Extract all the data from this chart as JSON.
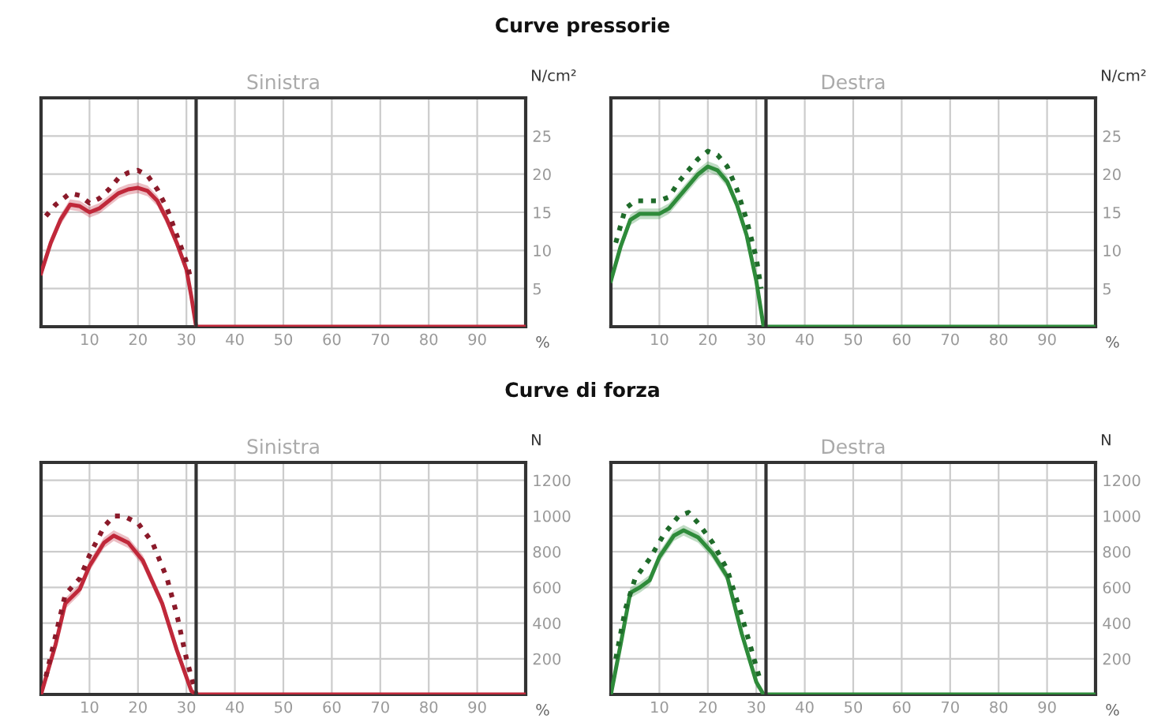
{
  "chart_data": [
    {
      "type": "line",
      "title": "Sinistra",
      "ylabel": "N/cm²",
      "xlabel": "%",
      "annotations": [
        "Curve pressorie"
      ],
      "xlim": [
        0,
        100
      ],
      "xticks": [
        10,
        20,
        30,
        40,
        50,
        60,
        70,
        80,
        90
      ],
      "ylim": [
        0,
        30
      ],
      "yticks": [
        5,
        10,
        15,
        20,
        25
      ],
      "grid": true,
      "ref_lines": [
        {
          "axis": "x",
          "value": 32,
          "color": "#333333"
        }
      ],
      "series": [
        {
          "color": "#c0283a",
          "line_style": "solid",
          "x": [
            0,
            2,
            4,
            6,
            8,
            10,
            12,
            14,
            16,
            18,
            20,
            22,
            24,
            26,
            28,
            30,
            31,
            32,
            100
          ],
          "values": [
            7,
            11,
            14,
            16,
            15.8,
            15,
            15.5,
            16.5,
            17.5,
            18,
            18.2,
            17.8,
            16.5,
            14,
            11,
            7.5,
            4,
            0,
            0
          ],
          "lower": [
            6.3,
            10.3,
            13.3,
            15.3,
            15.1,
            14.3,
            14.8,
            15.8,
            16.8,
            17.3,
            17.5,
            17.1,
            15.8,
            13.3,
            10.3,
            6.8,
            3.3,
            0,
            0
          ],
          "upper": [
            7.7,
            11.7,
            14.7,
            16.7,
            16.5,
            15.7,
            16.2,
            17.2,
            18.2,
            18.7,
            18.9,
            18.5,
            17.2,
            14.7,
            11.7,
            8.2,
            4.7,
            0,
            0
          ]
        },
        {
          "color": "#8b1a2a",
          "line_style": "dotted",
          "x": [
            1,
            3,
            6,
            8,
            10,
            12,
            14,
            16,
            18,
            20,
            22,
            24,
            26,
            28,
            30,
            31
          ],
          "values": [
            14.5,
            16,
            17.5,
            17.2,
            16.2,
            16.8,
            18,
            19.5,
            20.2,
            20.5,
            19.8,
            18,
            15.5,
            12,
            8.5,
            6
          ]
        }
      ]
    },
    {
      "type": "line",
      "title": "Destra",
      "ylabel": "N/cm²",
      "xlabel": "%",
      "xlim": [
        0,
        100
      ],
      "xticks": [
        10,
        20,
        30,
        40,
        50,
        60,
        70,
        80,
        90
      ],
      "ylim": [
        0,
        30
      ],
      "yticks": [
        5,
        10,
        15,
        20,
        25
      ],
      "grid": true,
      "ref_lines": [
        {
          "axis": "x",
          "value": 32,
          "color": "#333333"
        }
      ],
      "series": [
        {
          "color": "#2e8b3a",
          "line_style": "solid",
          "x": [
            0,
            2,
            4,
            6,
            8,
            10,
            12,
            14,
            16,
            18,
            20,
            22,
            24,
            26,
            28,
            30,
            31.5,
            100
          ],
          "values": [
            6,
            10.5,
            14,
            14.8,
            14.8,
            14.8,
            15.5,
            17,
            18.5,
            20,
            21,
            20.5,
            19,
            16,
            12,
            6,
            0,
            0
          ],
          "lower": [
            5.3,
            9.8,
            13.3,
            14.1,
            14.1,
            14.1,
            14.8,
            16.3,
            17.8,
            19.3,
            20.3,
            19.8,
            18.3,
            15.3,
            11.3,
            5.3,
            0,
            0
          ],
          "upper": [
            6.7,
            11.2,
            14.7,
            15.5,
            15.5,
            15.5,
            16.2,
            17.7,
            19.2,
            20.7,
            21.7,
            21.2,
            19.7,
            16.7,
            12.7,
            6.7,
            0,
            0
          ]
        },
        {
          "color": "#1f6b2a",
          "line_style": "dotted",
          "x": [
            1,
            3,
            5,
            8,
            10,
            12,
            14,
            16,
            18,
            20,
            22,
            24,
            26,
            28,
            30,
            31
          ],
          "values": [
            11,
            15.5,
            16.5,
            16.5,
            16.5,
            17,
            19,
            20.5,
            22,
            23,
            22.5,
            21,
            18,
            14,
            9,
            5
          ]
        }
      ]
    },
    {
      "type": "line",
      "title": "Sinistra",
      "ylabel": "N",
      "xlabel": "%",
      "annotations": [
        "Curve di forza"
      ],
      "xlim": [
        0,
        100
      ],
      "xticks": [
        10,
        20,
        30,
        40,
        50,
        60,
        70,
        80,
        90
      ],
      "ylim": [
        0,
        1300
      ],
      "yticks": [
        200,
        400,
        600,
        800,
        1000,
        1200
      ],
      "grid": true,
      "ref_lines": [
        {
          "axis": "x",
          "value": 32,
          "color": "#333333"
        }
      ],
      "series": [
        {
          "color": "#c0283a",
          "line_style": "solid",
          "x": [
            0,
            3,
            5,
            8,
            10,
            13,
            15,
            18,
            21,
            25,
            28,
            31,
            32,
            100
          ],
          "values": [
            0,
            280,
            510,
            590,
            720,
            850,
            890,
            850,
            750,
            510,
            250,
            20,
            0,
            0
          ],
          "lower": [
            0,
            250,
            480,
            560,
            690,
            820,
            860,
            820,
            720,
            480,
            220,
            0,
            0,
            0
          ],
          "upper": [
            0,
            310,
            540,
            620,
            750,
            880,
            920,
            880,
            780,
            540,
            280,
            50,
            0,
            0
          ]
        },
        {
          "color": "#8b1a2a",
          "line_style": "dotted",
          "x": [
            1,
            3,
            5,
            8,
            10,
            13,
            15,
            17,
            20,
            23,
            26,
            28,
            30,
            32
          ],
          "values": [
            100,
            330,
            560,
            650,
            780,
            940,
            1000,
            1000,
            960,
            850,
            650,
            450,
            200,
            0
          ]
        }
      ]
    },
    {
      "type": "line",
      "title": "Destra",
      "ylabel": "N",
      "xlabel": "%",
      "xlim": [
        0,
        100
      ],
      "xticks": [
        10,
        20,
        30,
        40,
        50,
        60,
        70,
        80,
        90
      ],
      "ylim": [
        0,
        1300
      ],
      "yticks": [
        200,
        400,
        600,
        800,
        1000,
        1200
      ],
      "grid": true,
      "ref_lines": [
        {
          "axis": "x",
          "value": 32,
          "color": "#333333"
        }
      ],
      "series": [
        {
          "color": "#2e8b3a",
          "line_style": "solid",
          "x": [
            0,
            2,
            4,
            6,
            8,
            10,
            13,
            15,
            18,
            21,
            24,
            27,
            30,
            31.5,
            100
          ],
          "values": [
            0,
            280,
            570,
            600,
            640,
            770,
            890,
            920,
            880,
            790,
            660,
            340,
            70,
            0,
            0
          ],
          "lower": [
            0,
            250,
            540,
            570,
            610,
            740,
            860,
            890,
            850,
            760,
            630,
            310,
            40,
            0,
            0
          ],
          "upper": [
            0,
            310,
            600,
            630,
            670,
            800,
            920,
            950,
            910,
            820,
            690,
            370,
            100,
            0,
            0
          ]
        },
        {
          "color": "#1f6b2a",
          "line_style": "dotted",
          "x": [
            1,
            3,
            5,
            8,
            11,
            14,
            16,
            18,
            21,
            24,
            27,
            29,
            31
          ],
          "values": [
            200,
            480,
            650,
            760,
            900,
            1000,
            1020,
            960,
            850,
            700,
            440,
            250,
            60
          ]
        }
      ]
    }
  ]
}
